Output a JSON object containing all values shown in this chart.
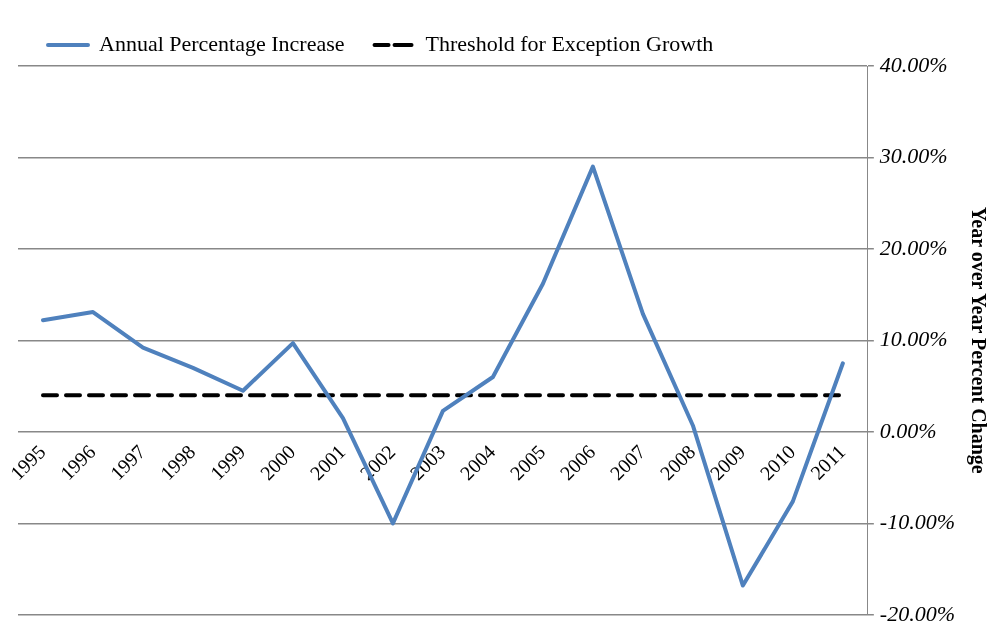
{
  "chart_data": {
    "type": "line",
    "ylabel": "Year over Year Percent Change",
    "categories": [
      "1995",
      "1996",
      "1997",
      "1998",
      "1999",
      "2000",
      "2001",
      "2002",
      "2003",
      "2004",
      "2005",
      "2006",
      "2007",
      "2008",
      "2009",
      "2010",
      "2011"
    ],
    "series": [
      {
        "name": "Annual Percentage Increase",
        "color": "#4f81bd",
        "values": [
          12.2,
          13.1,
          9.2,
          7.0,
          4.5,
          9.7,
          1.5,
          -10.0,
          2.3,
          6.0,
          16.2,
          29.0,
          12.9,
          0.7,
          -16.8,
          -7.6,
          7.5
        ]
      },
      {
        "name": "Threshold for Exception Growth",
        "color": "#000000",
        "line_style": "dashed",
        "values": [
          4,
          4,
          4,
          4,
          4,
          4,
          4,
          4,
          4,
          4,
          4,
          4,
          4,
          4,
          4,
          4,
          4
        ]
      }
    ],
    "ylim": [
      -20,
      40
    ],
    "yticks": [
      {
        "value": -20,
        "label": "-20.00%"
      },
      {
        "value": -10,
        "label": "-10.00%"
      },
      {
        "value": 0,
        "label": "0.00%"
      },
      {
        "value": 10,
        "label": "10.00%"
      },
      {
        "value": 20,
        "label": "20.00%"
      },
      {
        "value": 30,
        "label": "30.00%"
      },
      {
        "value": 40,
        "label": "40.00%"
      }
    ],
    "grid": "y",
    "legend": "top",
    "marker": "none",
    "line_style": "solid"
  }
}
